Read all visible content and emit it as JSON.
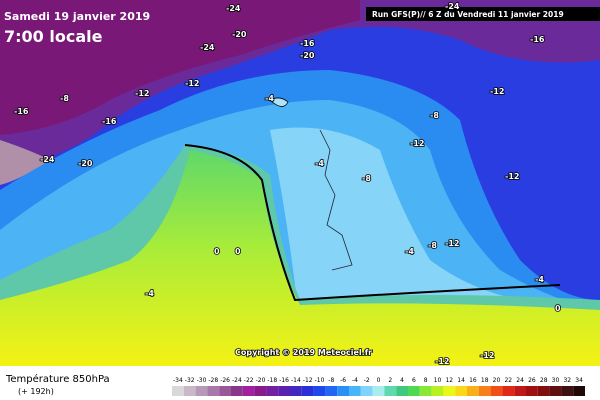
{
  "header": {
    "date": "Samedi 19 janvier 2019",
    "time": "7:00 locale",
    "run": "Run GFS(P)// 6 Z du Vendredi 11 janvier 2019"
  },
  "map": {
    "copyright": "Copyright © 2019 Meteociel.fr",
    "labels": [
      "-24",
      "-20",
      "-24",
      "-16",
      "-20",
      "-12",
      "-12",
      "-16",
      "-8",
      "-16",
      "-24",
      "-20",
      "-4",
      "-12",
      "-8",
      "-12",
      "-4",
      "-8",
      "-12",
      "-4",
      "-8",
      "-12",
      "0",
      "0",
      "-4",
      "-4",
      "-12",
      "-12",
      "-16",
      "-24",
      "0"
    ]
  },
  "legend": {
    "title": "Température 850hPa",
    "lead": "(+ 192h)",
    "scale": [
      -34,
      -32,
      -30,
      -28,
      -26,
      -24,
      -22,
      -20,
      -18,
      -16,
      -14,
      -12,
      -10,
      -8,
      -6,
      -4,
      -2,
      0,
      2,
      4,
      6,
      8,
      10,
      12,
      14,
      16,
      18,
      20,
      22,
      24,
      26,
      28,
      30,
      32,
      34
    ]
  }
}
